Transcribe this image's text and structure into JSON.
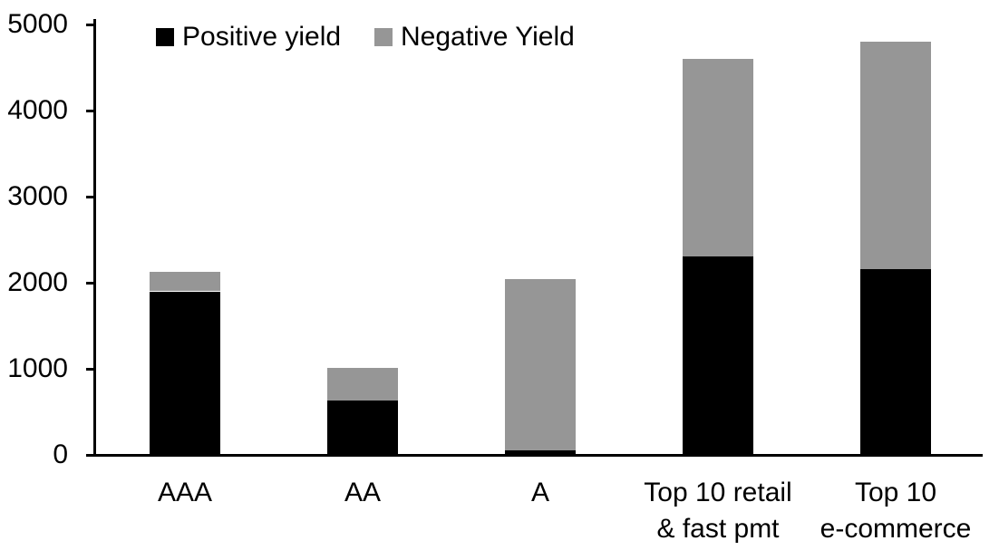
{
  "chart_data": {
    "type": "bar",
    "stacked": true,
    "title": "",
    "xlabel": "",
    "ylabel": "",
    "categories": [
      "AAA",
      "AA",
      "A",
      "Top 10 retail & fast pmt",
      "Top 10 e-commerce"
    ],
    "category_label_lines": [
      [
        "AAA"
      ],
      [
        "AA"
      ],
      [
        "A"
      ],
      [
        "Top 10 retail",
        "& fast pmt"
      ],
      [
        "Top 10",
        "e-commerce"
      ]
    ],
    "series": [
      {
        "name": "Positive yield",
        "color": "#000000",
        "values": [
          1900,
          630,
          50,
          2310,
          2160
        ]
      },
      {
        "name": "Negative Yield",
        "color": "#969696",
        "values": [
          230,
          380,
          1990,
          2290,
          2640
        ]
      }
    ],
    "totals": [
      2130,
      1010,
      2040,
      4600,
      4800
    ],
    "ylim": [
      0,
      5000
    ],
    "yticks": [
      0,
      1000,
      2000,
      3000,
      4000,
      5000
    ],
    "grid": false,
    "legend_position": "top-inside"
  }
}
